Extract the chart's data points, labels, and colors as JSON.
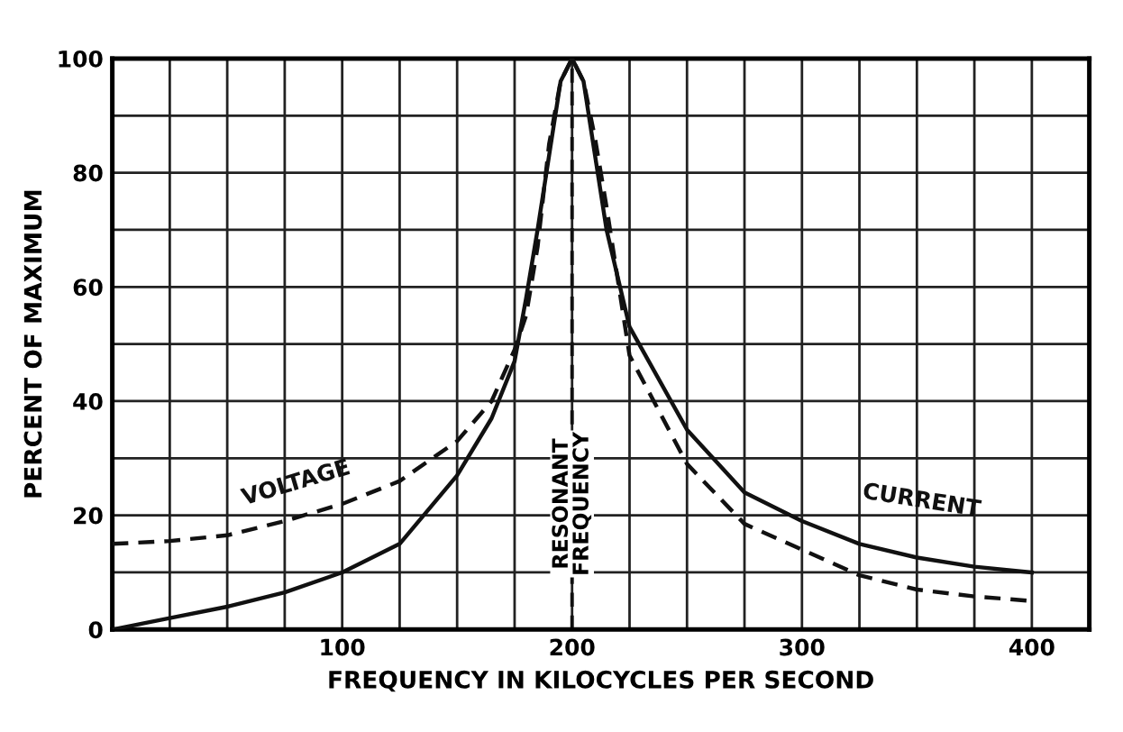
{
  "chart_data": {
    "type": "line",
    "xlabel": "FREQUENCY IN KILOCYCLES PER SECOND",
    "ylabel": "PERCENT OF MAXIMUM",
    "series": [
      {
        "name": "VOLTAGE",
        "color": "#111111",
        "line_style": "dashed",
        "x": [
          0,
          25,
          50,
          75,
          100,
          125,
          150,
          165,
          175,
          180,
          185,
          190,
          195,
          200,
          205,
          210,
          215,
          225,
          250,
          275,
          300,
          325,
          350,
          375,
          400
        ],
        "values": [
          15,
          15.5,
          16.5,
          19,
          22,
          26,
          33,
          40,
          49,
          55,
          67,
          85,
          96,
          100,
          96,
          86,
          74,
          48,
          29,
          18.5,
          14,
          9.5,
          7,
          5.8,
          5
        ]
      },
      {
        "name": "CURRENT",
        "color": "#111111",
        "line_style": "solid",
        "x": [
          0,
          25,
          50,
          75,
          100,
          125,
          150,
          165,
          175,
          180,
          185,
          190,
          195,
          200,
          205,
          210,
          215,
          225,
          250,
          275,
          300,
          325,
          350,
          375,
          400
        ],
        "values": [
          0,
          2,
          4,
          6.5,
          10,
          15,
          27,
          37,
          47,
          58,
          70,
          83,
          96,
          100,
          96,
          83,
          70,
          53,
          35,
          24,
          19,
          15,
          12.6,
          11,
          10
        ]
      }
    ],
    "ref_lines": [
      {
        "axis": "x",
        "value": 200,
        "label": "RESONANT\nFREQUENCY",
        "line_style": "dashed",
        "color": "#111111"
      }
    ],
    "xlim": [
      0,
      425
    ],
    "ylim": [
      0,
      100
    ],
    "xticks": [
      {
        "value": 0,
        "label": null
      },
      {
        "value": 25,
        "label": null
      },
      {
        "value": 50,
        "label": null
      },
      {
        "value": 75,
        "label": null
      },
      100,
      {
        "value": 125,
        "label": null
      },
      {
        "value": 150,
        "label": null
      },
      {
        "value": 175,
        "label": null
      },
      200,
      {
        "value": 225,
        "label": null
      },
      {
        "value": 250,
        "label": null
      },
      {
        "value": 275,
        "label": null
      },
      300,
      {
        "value": 325,
        "label": null
      },
      {
        "value": 350,
        "label": null
      },
      {
        "value": 375,
        "label": null
      },
      400
    ],
    "yticks": [
      0,
      {
        "value": 10,
        "label": null
      },
      20,
      {
        "value": 30,
        "label": null
      },
      40,
      {
        "value": 50,
        "label": null
      },
      60,
      {
        "value": 70,
        "label": null
      },
      80,
      {
        "value": 90,
        "label": null
      },
      100
    ],
    "grid": true,
    "legend": false,
    "marker": "none"
  }
}
